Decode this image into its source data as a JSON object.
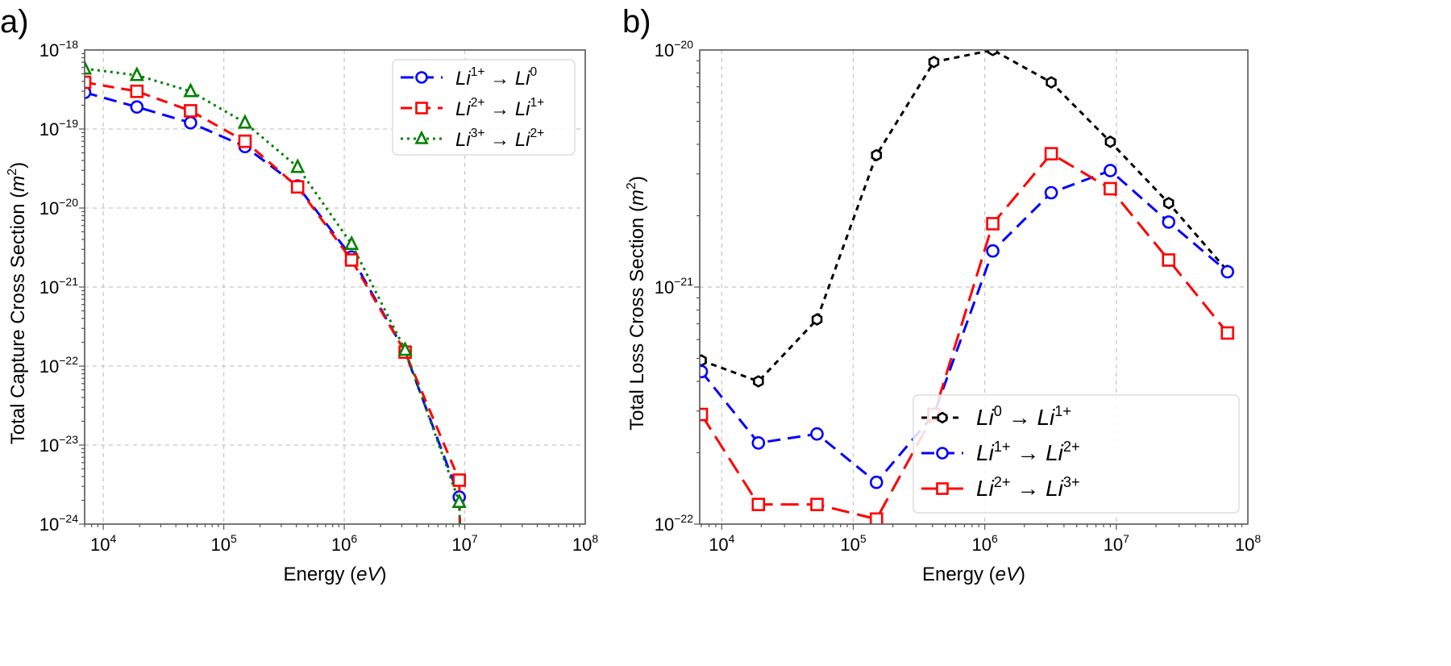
{
  "chart_data": [
    {
      "panel_label": "a)",
      "type": "line",
      "xscale": "log",
      "yscale": "log",
      "xlim": [
        7000,
        100000000
      ],
      "ylim": [
        1e-24,
        1e-18
      ],
      "xlabel": {
        "text": "Energy (",
        "var": "eV",
        "close": ")"
      },
      "ylabel": {
        "text": "Total Capture Cross Section (",
        "var": "m",
        "exp": "2",
        "close": ")"
      },
      "xticks": [
        {
          "base": "10",
          "exp": "4",
          "value": 10000.0
        },
        {
          "base": "10",
          "exp": "5",
          "value": 100000.0
        },
        {
          "base": "10",
          "exp": "6",
          "value": 1000000.0
        },
        {
          "base": "10",
          "exp": "7",
          "value": 10000000.0
        },
        {
          "base": "10",
          "exp": "8",
          "value": 100000000.0
        }
      ],
      "yticks": [
        {
          "base": "10",
          "exp": "−18",
          "value": 1e-18
        },
        {
          "base": "10",
          "exp": "−19",
          "value": 1e-19
        },
        {
          "base": "10",
          "exp": "−20",
          "value": 1e-20
        },
        {
          "base": "10",
          "exp": "−21",
          "value": 1e-21
        },
        {
          "base": "10",
          "exp": "−22",
          "value": 1e-22
        },
        {
          "base": "10",
          "exp": "−23",
          "value": 1e-23
        },
        {
          "base": "10",
          "exp": "−24",
          "value": 1e-24
        }
      ],
      "grid": true,
      "legend_position": "top-right",
      "x": [
        7000,
        19000,
        53000,
        150000,
        410000,
        1150000,
        3200000,
        9000000
      ],
      "series": [
        {
          "name": "Li1+ → Li0",
          "label": {
            "a": "Li",
            "as": "1+",
            "b": "Li",
            "bs": "0"
          },
          "color": "#0000ff",
          "marker": "circle",
          "linestyle": "dashed",
          "values": [
            2.9e-19,
            1.9e-19,
            1.2e-19,
            6e-20,
            1.9e-20,
            2.4e-21,
            1.5e-22,
            2.2e-24
          ]
        },
        {
          "name": "Li2+ → Li1+",
          "label": {
            "a": "Li",
            "as": "2+",
            "b": "Li",
            "bs": "1+"
          },
          "color": "#ff0000",
          "marker": "square",
          "linestyle": "dashdash",
          "values": [
            3.9e-19,
            3e-19,
            1.7e-19,
            7e-20,
            1.85e-20,
            2.2e-21,
            1.5e-22,
            3.6e-24
          ]
        },
        {
          "name": "Li3+ → Li2+",
          "label": {
            "a": "Li",
            "as": "3+",
            "b": "Li",
            "bs": "2+"
          },
          "color": "#008000",
          "marker": "triangle",
          "linestyle": "dotted",
          "values": [
            5.8e-19,
            4.8e-19,
            3e-19,
            1.2e-19,
            3.3e-20,
            3.5e-21,
            1.6e-22,
            1.9e-24
          ]
        }
      ]
    },
    {
      "panel_label": "b)",
      "type": "line",
      "xscale": "log",
      "yscale": "log",
      "xlim": [
        6800,
        100000000
      ],
      "ylim": [
        1e-22,
        1e-20
      ],
      "xlabel": {
        "text": "Energy (",
        "var": "eV",
        "close": ")"
      },
      "ylabel": {
        "text": "Total Loss Cross Section (",
        "var": "m",
        "exp": "2",
        "close": ")"
      },
      "xticks": [
        {
          "base": "10",
          "exp": "4",
          "value": 10000.0
        },
        {
          "base": "10",
          "exp": "5",
          "value": 100000.0
        },
        {
          "base": "10",
          "exp": "6",
          "value": 1000000.0
        },
        {
          "base": "10",
          "exp": "7",
          "value": 10000000.0
        },
        {
          "base": "10",
          "exp": "8",
          "value": 100000000.0
        }
      ],
      "yticks": [
        {
          "base": "10",
          "exp": "−20",
          "value": 1e-20
        },
        {
          "base": "10",
          "exp": "−21",
          "value": 1e-21
        },
        {
          "base": "10",
          "exp": "−22",
          "value": 1e-22
        }
      ],
      "grid": true,
      "legend_position": "lower-right",
      "x": [
        7000,
        19000,
        53000,
        150000,
        410000,
        1150000,
        3200000,
        9000000,
        25000000,
        70000000
      ],
      "series": [
        {
          "name": "Li0 → Li1+",
          "label": {
            "a": "Li",
            "as": "0",
            "b": "Li",
            "bs": "1+"
          },
          "color": "#000000",
          "marker": "hexagon",
          "linestyle": "dotted-dash",
          "values": [
            4.9e-22,
            4e-22,
            7.3e-22,
            3.6e-21,
            8.9e-21,
            1e-20,
            7.3e-21,
            4.1e-21,
            2.26e-21,
            1.17e-21
          ]
        },
        {
          "name": "Li1+ → Li2+",
          "label": {
            "a": "Li",
            "as": "1+",
            "b": "Li",
            "bs": "2+"
          },
          "color": "#0000ff",
          "marker": "circle",
          "linestyle": "dashed",
          "values": [
            4.4e-22,
            2.2e-22,
            2.4e-22,
            1.5e-22,
            2.9e-22,
            1.42e-21,
            2.5e-21,
            3.1e-21,
            1.88e-21,
            1.16e-21
          ]
        },
        {
          "name": "Li2+ → Li3+",
          "label": {
            "a": "Li",
            "as": "2+",
            "b": "Li",
            "bs": "3+"
          },
          "color": "#ff0000",
          "marker": "square",
          "linestyle": "longdash",
          "values": [
            2.9e-22,
            1.21e-22,
            1.21e-22,
            1.05e-22,
            2.9e-22,
            1.85e-21,
            3.65e-21,
            2.6e-21,
            1.3e-21,
            6.4e-22
          ]
        }
      ]
    }
  ]
}
